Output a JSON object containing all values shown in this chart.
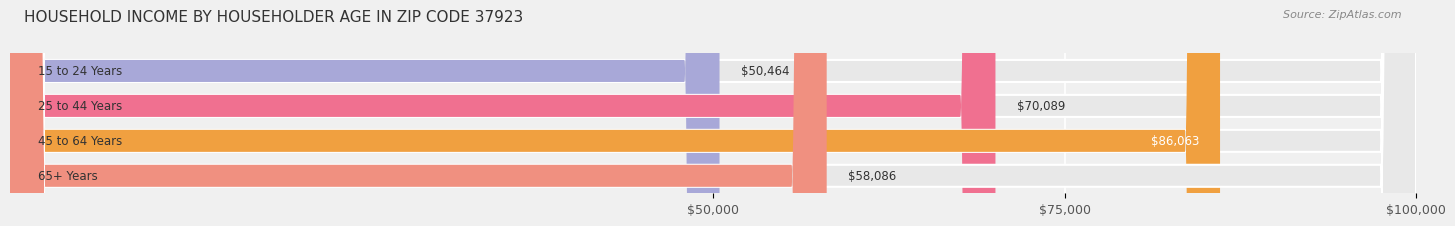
{
  "title": "HOUSEHOLD INCOME BY HOUSEHOLDER AGE IN ZIP CODE 37923",
  "source": "Source: ZipAtlas.com",
  "categories": [
    "15 to 24 Years",
    "25 to 44 Years",
    "45 to 64 Years",
    "65+ Years"
  ],
  "values": [
    50464,
    70089,
    86063,
    58086
  ],
  "bar_colors": [
    "#a8a8d8",
    "#f07090",
    "#f0a040",
    "#f09080"
  ],
  "label_colors": [
    "#404040",
    "#404040",
    "#ffffff",
    "#404040"
  ],
  "xlim": [
    0,
    100000
  ],
  "xticks": [
    50000,
    75000,
    100000
  ],
  "xticklabels": [
    "$50,000",
    "$75,000",
    "$100,000"
  ],
  "bg_color": "#f0f0f0",
  "bar_bg_color": "#e8e8e8",
  "title_fontsize": 11,
  "source_fontsize": 8,
  "tick_fontsize": 9,
  "label_fontsize": 8.5,
  "value_fontsize": 8.5,
  "category_fontsize": 8.5
}
